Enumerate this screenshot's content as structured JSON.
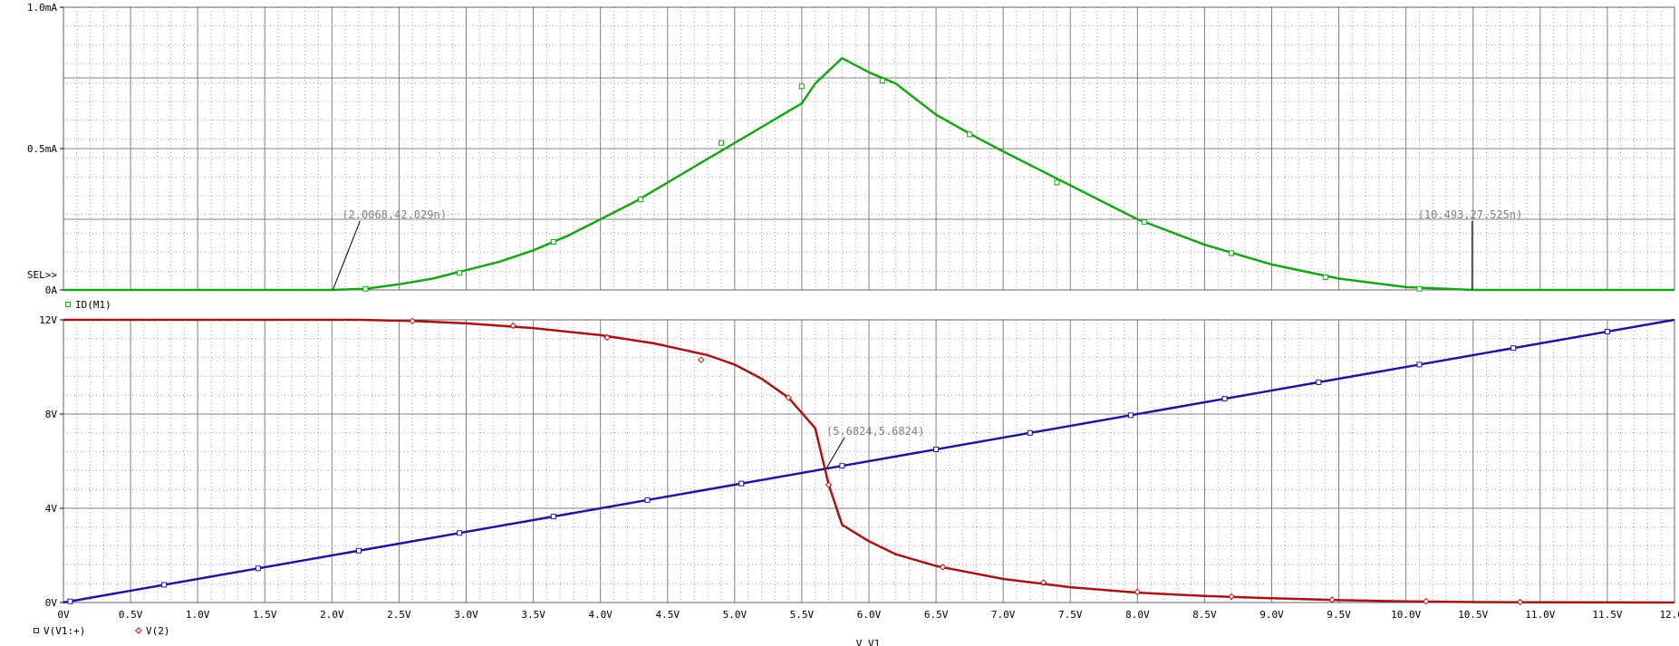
{
  "chart_data": [
    {
      "type": "line",
      "xlim": [
        0,
        12
      ],
      "ylim": [
        0,
        1.0
      ],
      "y_unit": "mA",
      "y_ticks": [
        {
          "value": 1.0,
          "label": "1.0mA"
        },
        {
          "value": 0.5,
          "label": "0.5mA"
        },
        {
          "value": 0,
          "label": "0A"
        }
      ],
      "sel_marker": "SEL>>",
      "series": [
        {
          "name": "ID(M1)",
          "color": "#1aa31a",
          "marker": "square",
          "x": [
            0,
            1,
            2.0,
            2.25,
            2.5,
            2.75,
            3.0,
            3.25,
            3.5,
            3.75,
            4.0,
            4.25,
            4.5,
            4.75,
            5.0,
            5.25,
            5.5,
            5.6,
            5.8,
            6.0,
            6.2,
            6.5,
            6.8,
            7.0,
            7.5,
            8.0,
            8.5,
            9.0,
            9.5,
            10.0,
            10.5,
            11.0,
            12.0
          ],
          "y": [
            0,
            0,
            4e-05,
            0.004,
            0.02,
            0.04,
            0.07,
            0.1,
            0.14,
            0.19,
            0.25,
            0.31,
            0.38,
            0.45,
            0.52,
            0.59,
            0.66,
            0.73,
            0.82,
            0.77,
            0.73,
            0.62,
            0.54,
            0.49,
            0.37,
            0.25,
            0.16,
            0.09,
            0.04,
            0.01,
            3e-05,
            0,
            0
          ],
          "marker_x": [
            2.25,
            2.95,
            3.65,
            4.3,
            4.9,
            5.5,
            6.1,
            6.75,
            7.4,
            8.05,
            8.7,
            9.4,
            10.1
          ],
          "marker_y": [
            0.004,
            0.06,
            0.17,
            0.32,
            0.52,
            0.72,
            0.74,
            0.55,
            0.38,
            0.24,
            0.13,
            0.045,
            0.004
          ]
        }
      ],
      "cursors": [
        {
          "label": "(2.0068,42.029n)",
          "x": 2.0068,
          "y": 4e-05
        },
        {
          "label": "(10.493,27.525n)",
          "x": 10.493,
          "y": 3e-05
        }
      ]
    },
    {
      "type": "line",
      "xlim": [
        0,
        12
      ],
      "ylim": [
        0,
        12
      ],
      "x_ticks": [
        {
          "value": 0,
          "label": "0V"
        },
        {
          "value": 0.5,
          "label": "0.5V"
        },
        {
          "value": 1,
          "label": "1.0V"
        },
        {
          "value": 1.5,
          "label": "1.5V"
        },
        {
          "value": 2,
          "label": "2.0V"
        },
        {
          "value": 2.5,
          "label": "2.5V"
        },
        {
          "value": 3,
          "label": "3.0V"
        },
        {
          "value": 3.5,
          "label": "3.5V"
        },
        {
          "value": 4,
          "label": "4.0V"
        },
        {
          "value": 4.5,
          "label": "4.5V"
        },
        {
          "value": 5,
          "label": "5.0V"
        },
        {
          "value": 5.5,
          "label": "5.5V"
        },
        {
          "value": 6,
          "label": "6.0V"
        },
        {
          "value": 6.5,
          "label": "6.5V"
        },
        {
          "value": 7,
          "label": "7.0V"
        },
        {
          "value": 7.5,
          "label": "7.5V"
        },
        {
          "value": 8,
          "label": "8.0V"
        },
        {
          "value": 8.5,
          "label": "8.5V"
        },
        {
          "value": 9,
          "label": "9.0V"
        },
        {
          "value": 9.5,
          "label": "9.5V"
        },
        {
          "value": 10,
          "label": "10.0V"
        },
        {
          "value": 10.5,
          "label": "10.5V"
        },
        {
          "value": 11,
          "label": "11.0V"
        },
        {
          "value": 11.5,
          "label": "11.5V"
        },
        {
          "value": 12,
          "label": "12.0V"
        }
      ],
      "y_ticks": [
        {
          "value": 12,
          "label": "12V"
        },
        {
          "value": 8,
          "label": "8V"
        },
        {
          "value": 4,
          "label": "4V"
        },
        {
          "value": 0,
          "label": "0V"
        }
      ],
      "xlabel": "V_V1",
      "series": [
        {
          "name": "V(V1:+)",
          "color": "#1a1a99",
          "marker": "square",
          "x": [
            0,
            12
          ],
          "y": [
            0,
            12
          ],
          "marker_x": [
            0.05,
            0.75,
            1.45,
            2.2,
            2.95,
            3.65,
            4.35,
            5.05,
            5.8,
            6.5,
            7.2,
            7.95,
            8.65,
            9.35,
            10.1,
            10.8,
            11.5
          ],
          "marker_y": [
            0.05,
            0.75,
            1.45,
            2.2,
            2.95,
            3.65,
            4.35,
            5.05,
            5.8,
            6.5,
            7.2,
            7.95,
            8.65,
            9.35,
            10.1,
            10.8,
            11.5
          ]
        },
        {
          "name": "V(2)",
          "color": "#a31414",
          "marker": "diamond",
          "x": [
            0,
            1,
            2.2,
            2.6,
            3.0,
            3.5,
            4.0,
            4.4,
            4.8,
            5.0,
            5.2,
            5.4,
            5.6,
            5.7,
            5.8,
            5.9,
            6.0,
            6.2,
            6.5,
            7.0,
            7.5,
            8.0,
            8.5,
            9.0,
            9.5,
            10.0,
            10.5,
            11.0,
            12.0
          ],
          "y": [
            12,
            12,
            12,
            11.95,
            11.85,
            11.65,
            11.35,
            11.0,
            10.5,
            10.1,
            9.5,
            8.7,
            7.4,
            5.0,
            3.3,
            2.95,
            2.6,
            2.05,
            1.55,
            1.0,
            0.65,
            0.42,
            0.28,
            0.18,
            0.1,
            0.05,
            0.02,
            0.01,
            0
          ]
        }
      ],
      "v2_marker_x": [
        2.6,
        3.35,
        4.05,
        4.75,
        5.4,
        5.7,
        6.55,
        7.3,
        8.0,
        8.7,
        9.45,
        10.15,
        10.85
      ],
      "v2_marker_y": [
        11.95,
        11.75,
        11.25,
        10.3,
        8.7,
        5.0,
        1.5,
        0.85,
        0.45,
        0.25,
        0.12,
        0.05,
        0.02
      ],
      "cursors": [
        {
          "label": "(5.6824,5.6824)",
          "x": 5.6824,
          "y": 5.6824
        }
      ]
    }
  ]
}
